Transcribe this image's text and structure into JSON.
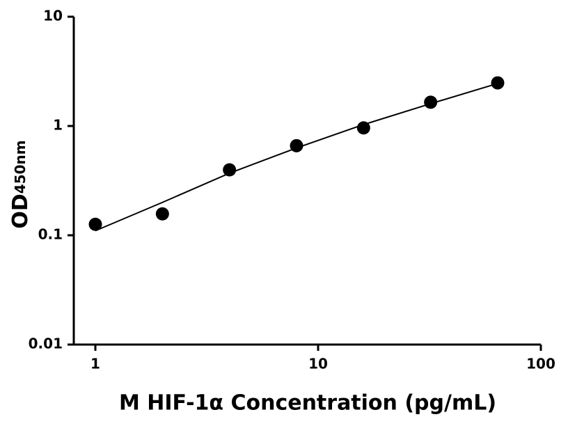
{
  "chart_data": {
    "type": "scatter",
    "x": [
      1,
      2,
      4,
      8,
      16,
      32,
      64
    ],
    "series": [
      {
        "color": "#000000",
        "marker": "circle",
        "values": [
          0.126,
          0.157,
          0.397,
          0.66,
          0.96,
          1.65,
          2.48
        ]
      },
      {
        "color": "#000000",
        "marker": "line",
        "values": [
          0.11,
          0.2,
          0.37,
          0.63,
          1.03,
          1.6,
          2.45
        ]
      }
    ],
    "xlabel": "M HIF-1α Concentration (pg/mL)",
    "ylabel": {
      "text": "OD",
      "subscript": "450nm"
    },
    "xscale": "log",
    "yscale": "log",
    "xlim": [
      0.8,
      100
    ],
    "ylim": [
      0.01,
      10
    ],
    "xticks": [
      1,
      10,
      100
    ],
    "yticks": [
      0.01,
      0.1,
      1,
      10
    ],
    "grid": false
  }
}
